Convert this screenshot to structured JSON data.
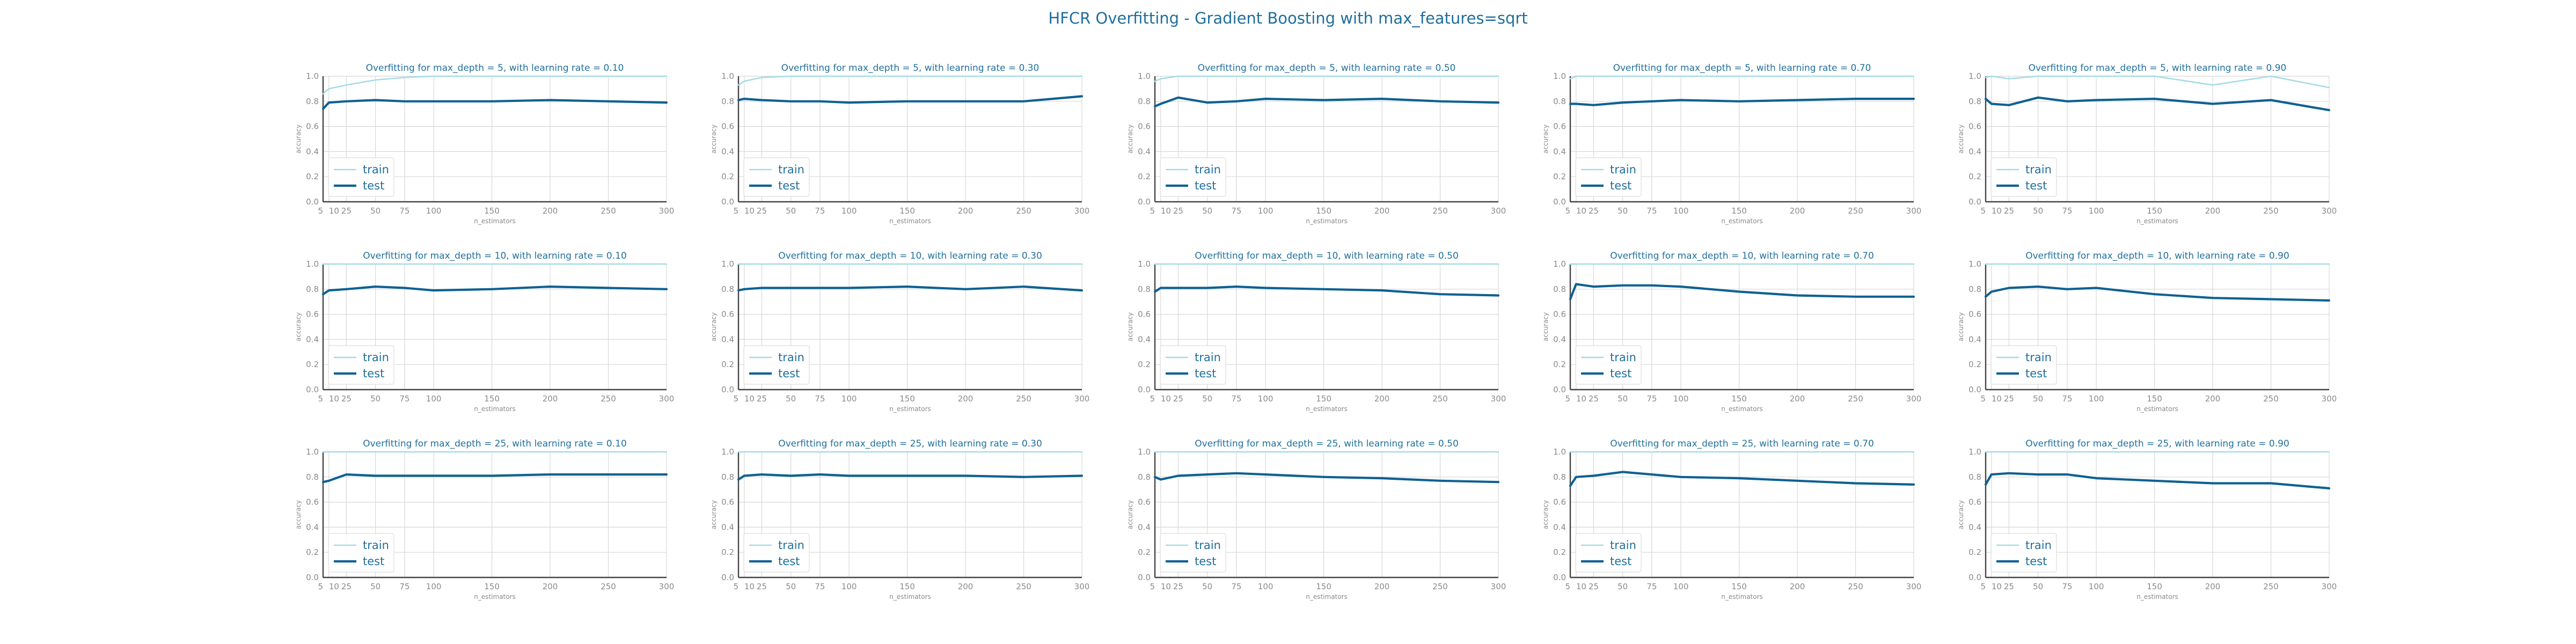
{
  "suptitle": "HFCR Overfitting - Gradient Boosting with max_features=sqrt",
  "colors": {
    "train": "#a6dce5",
    "test": "#0e6193",
    "grid": "#d8d8d8",
    "axis": "#444444",
    "text": "#1f6f9c"
  },
  "chart_data": [
    {
      "type": "line",
      "title": "Overfitting for max_depth = 5, with learning rate = 0.10",
      "xlabel": "n_estimators",
      "ylabel": "accuracy",
      "ylim": [
        0,
        1
      ],
      "xlim": [
        5,
        300
      ],
      "xticks": [
        5,
        10,
        25,
        50,
        75,
        100,
        150,
        200,
        250,
        300
      ],
      "yticks": [
        0.0,
        0.2,
        0.4,
        0.6,
        0.8,
        1.0
      ],
      "x": [
        5,
        10,
        25,
        50,
        75,
        100,
        150,
        200,
        250,
        300
      ],
      "legend": "lower-left",
      "grid": true,
      "series": [
        {
          "name": "train",
          "values": [
            0.86,
            0.9,
            0.93,
            0.97,
            0.99,
            1.0,
            1.0,
            1.0,
            1.0,
            1.0
          ]
        },
        {
          "name": "test",
          "values": [
            0.74,
            0.79,
            0.8,
            0.81,
            0.8,
            0.8,
            0.8,
            0.81,
            0.8,
            0.79
          ]
        }
      ]
    },
    {
      "type": "line",
      "title": "Overfitting for max_depth = 5, with learning rate = 0.30",
      "xlabel": "n_estimators",
      "ylabel": "accuracy",
      "ylim": [
        0,
        1
      ],
      "xlim": [
        5,
        300
      ],
      "xticks": [
        5,
        10,
        25,
        50,
        75,
        100,
        150,
        200,
        250,
        300
      ],
      "yticks": [
        0.0,
        0.2,
        0.4,
        0.6,
        0.8,
        1.0
      ],
      "x": [
        5,
        10,
        25,
        50,
        75,
        100,
        150,
        200,
        250,
        300
      ],
      "legend": "lower-left",
      "grid": true,
      "series": [
        {
          "name": "train",
          "values": [
            0.93,
            0.96,
            0.99,
            1.0,
            1.0,
            1.0,
            1.0,
            1.0,
            1.0,
            1.0
          ]
        },
        {
          "name": "test",
          "values": [
            0.81,
            0.82,
            0.81,
            0.8,
            0.8,
            0.79,
            0.8,
            0.8,
            0.8,
            0.84
          ]
        }
      ]
    },
    {
      "type": "line",
      "title": "Overfitting for max_depth = 5, with learning rate = 0.50",
      "xlabel": "n_estimators",
      "ylabel": "accuracy",
      "ylim": [
        0,
        1
      ],
      "xlim": [
        5,
        300
      ],
      "xticks": [
        5,
        10,
        25,
        50,
        75,
        100,
        150,
        200,
        250,
        300
      ],
      "yticks": [
        0.0,
        0.2,
        0.4,
        0.6,
        0.8,
        1.0
      ],
      "x": [
        5,
        10,
        25,
        50,
        75,
        100,
        150,
        200,
        250,
        300
      ],
      "legend": "lower-left",
      "grid": true,
      "series": [
        {
          "name": "train",
          "values": [
            0.96,
            0.98,
            1.0,
            1.0,
            1.0,
            1.0,
            1.0,
            1.0,
            1.0,
            1.0
          ]
        },
        {
          "name": "test",
          "values": [
            0.76,
            0.78,
            0.83,
            0.79,
            0.8,
            0.82,
            0.81,
            0.82,
            0.8,
            0.79
          ]
        }
      ]
    },
    {
      "type": "line",
      "title": "Overfitting for max_depth = 5, with learning rate = 0.70",
      "xlabel": "n_estimators",
      "ylabel": "accuracy",
      "ylim": [
        0,
        1
      ],
      "xlim": [
        5,
        300
      ],
      "xticks": [
        5,
        10,
        25,
        50,
        75,
        100,
        150,
        200,
        250,
        300
      ],
      "yticks": [
        0.0,
        0.2,
        0.4,
        0.6,
        0.8,
        1.0
      ],
      "x": [
        5,
        10,
        25,
        50,
        75,
        100,
        150,
        200,
        250,
        300
      ],
      "legend": "lower-left",
      "grid": true,
      "series": [
        {
          "name": "train",
          "values": [
            0.98,
            1.0,
            1.0,
            1.0,
            1.0,
            1.0,
            1.0,
            1.0,
            1.0,
            1.0
          ]
        },
        {
          "name": "test",
          "values": [
            0.78,
            0.78,
            0.77,
            0.79,
            0.8,
            0.81,
            0.8,
            0.81,
            0.82,
            0.82
          ]
        }
      ]
    },
    {
      "type": "line",
      "title": "Overfitting for max_depth = 5, with learning rate = 0.90",
      "xlabel": "n_estimators",
      "ylabel": "accuracy",
      "ylim": [
        0,
        1
      ],
      "xlim": [
        5,
        300
      ],
      "xticks": [
        5,
        10,
        25,
        50,
        75,
        100,
        150,
        200,
        250,
        300
      ],
      "yticks": [
        0.0,
        0.2,
        0.4,
        0.6,
        0.8,
        1.0
      ],
      "x": [
        5,
        10,
        25,
        50,
        75,
        100,
        150,
        200,
        250,
        300
      ],
      "legend": "lower-left",
      "grid": true,
      "series": [
        {
          "name": "train",
          "values": [
            0.99,
            1.0,
            0.98,
            1.0,
            1.0,
            1.0,
            1.0,
            0.93,
            1.0,
            0.91
          ]
        },
        {
          "name": "test",
          "values": [
            0.82,
            0.78,
            0.77,
            0.83,
            0.8,
            0.81,
            0.82,
            0.78,
            0.81,
            0.73
          ]
        }
      ]
    },
    {
      "type": "line",
      "title": "Overfitting for max_depth = 10, with learning rate = 0.10",
      "xlabel": "n_estimators",
      "ylabel": "accuracy",
      "ylim": [
        0,
        1
      ],
      "xlim": [
        5,
        300
      ],
      "xticks": [
        5,
        10,
        25,
        50,
        75,
        100,
        150,
        200,
        250,
        300
      ],
      "yticks": [
        0.0,
        0.2,
        0.4,
        0.6,
        0.8,
        1.0
      ],
      "x": [
        5,
        10,
        25,
        50,
        75,
        100,
        150,
        200,
        250,
        300
      ],
      "legend": "lower-left",
      "grid": true,
      "series": [
        {
          "name": "train",
          "values": [
            1.0,
            1.0,
            1.0,
            1.0,
            1.0,
            1.0,
            1.0,
            1.0,
            1.0,
            1.0
          ]
        },
        {
          "name": "test",
          "values": [
            0.76,
            0.79,
            0.8,
            0.82,
            0.81,
            0.79,
            0.8,
            0.82,
            0.81,
            0.8
          ]
        }
      ]
    },
    {
      "type": "line",
      "title": "Overfitting for max_depth = 10, with learning rate = 0.30",
      "xlabel": "n_estimators",
      "ylabel": "accuracy",
      "ylim": [
        0,
        1
      ],
      "xlim": [
        5,
        300
      ],
      "xticks": [
        5,
        10,
        25,
        50,
        75,
        100,
        150,
        200,
        250,
        300
      ],
      "yticks": [
        0.0,
        0.2,
        0.4,
        0.6,
        0.8,
        1.0
      ],
      "x": [
        5,
        10,
        25,
        50,
        75,
        100,
        150,
        200,
        250,
        300
      ],
      "legend": "lower-left",
      "grid": true,
      "series": [
        {
          "name": "train",
          "values": [
            1.0,
            1.0,
            1.0,
            1.0,
            1.0,
            1.0,
            1.0,
            1.0,
            1.0,
            1.0
          ]
        },
        {
          "name": "test",
          "values": [
            0.79,
            0.8,
            0.81,
            0.81,
            0.81,
            0.81,
            0.82,
            0.8,
            0.82,
            0.79
          ]
        }
      ]
    },
    {
      "type": "line",
      "title": "Overfitting for max_depth = 10, with learning rate = 0.50",
      "xlabel": "n_estimators",
      "ylabel": "accuracy",
      "ylim": [
        0,
        1
      ],
      "xlim": [
        5,
        300
      ],
      "xticks": [
        5,
        10,
        25,
        50,
        75,
        100,
        150,
        200,
        250,
        300
      ],
      "yticks": [
        0.0,
        0.2,
        0.4,
        0.6,
        0.8,
        1.0
      ],
      "x": [
        5,
        10,
        25,
        50,
        75,
        100,
        150,
        200,
        250,
        300
      ],
      "legend": "lower-left",
      "grid": true,
      "series": [
        {
          "name": "train",
          "values": [
            1.0,
            1.0,
            1.0,
            1.0,
            1.0,
            1.0,
            1.0,
            1.0,
            1.0,
            1.0
          ]
        },
        {
          "name": "test",
          "values": [
            0.78,
            0.81,
            0.81,
            0.81,
            0.82,
            0.81,
            0.8,
            0.79,
            0.76,
            0.75
          ]
        }
      ]
    },
    {
      "type": "line",
      "title": "Overfitting for max_depth = 10, with learning rate = 0.70",
      "xlabel": "n_estimators",
      "ylabel": "accuracy",
      "ylim": [
        0,
        1
      ],
      "xlim": [
        5,
        300
      ],
      "xticks": [
        5,
        10,
        25,
        50,
        75,
        100,
        150,
        200,
        250,
        300
      ],
      "yticks": [
        0.0,
        0.2,
        0.4,
        0.6,
        0.8,
        1.0
      ],
      "x": [
        5,
        10,
        25,
        50,
        75,
        100,
        150,
        200,
        250,
        300
      ],
      "legend": "lower-left",
      "grid": true,
      "series": [
        {
          "name": "train",
          "values": [
            1.0,
            1.0,
            1.0,
            1.0,
            1.0,
            1.0,
            1.0,
            1.0,
            1.0,
            1.0
          ]
        },
        {
          "name": "test",
          "values": [
            0.72,
            0.84,
            0.82,
            0.83,
            0.83,
            0.82,
            0.78,
            0.75,
            0.74,
            0.74
          ]
        }
      ]
    },
    {
      "type": "line",
      "title": "Overfitting for max_depth = 10, with learning rate = 0.90",
      "xlabel": "n_estimators",
      "ylabel": "accuracy",
      "ylim": [
        0,
        1
      ],
      "xlim": [
        5,
        300
      ],
      "xticks": [
        5,
        10,
        25,
        50,
        75,
        100,
        150,
        200,
        250,
        300
      ],
      "yticks": [
        0.0,
        0.2,
        0.4,
        0.6,
        0.8,
        1.0
      ],
      "x": [
        5,
        10,
        25,
        50,
        75,
        100,
        150,
        200,
        250,
        300
      ],
      "legend": "lower-left",
      "grid": true,
      "series": [
        {
          "name": "train",
          "values": [
            1.0,
            1.0,
            1.0,
            1.0,
            1.0,
            1.0,
            1.0,
            1.0,
            1.0,
            1.0
          ]
        },
        {
          "name": "test",
          "values": [
            0.74,
            0.78,
            0.81,
            0.82,
            0.8,
            0.81,
            0.76,
            0.73,
            0.72,
            0.71
          ]
        }
      ]
    },
    {
      "type": "line",
      "title": "Overfitting for max_depth = 25, with learning rate = 0.10",
      "xlabel": "n_estimators",
      "ylabel": "accuracy",
      "ylim": [
        0,
        1
      ],
      "xlim": [
        5,
        300
      ],
      "xticks": [
        5,
        10,
        25,
        50,
        75,
        100,
        150,
        200,
        250,
        300
      ],
      "yticks": [
        0.0,
        0.2,
        0.4,
        0.6,
        0.8,
        1.0
      ],
      "x": [
        5,
        10,
        25,
        50,
        75,
        100,
        150,
        200,
        250,
        300
      ],
      "legend": "lower-left",
      "grid": true,
      "series": [
        {
          "name": "train",
          "values": [
            1.0,
            1.0,
            1.0,
            1.0,
            1.0,
            1.0,
            1.0,
            1.0,
            1.0,
            1.0
          ]
        },
        {
          "name": "test",
          "values": [
            0.76,
            0.77,
            0.82,
            0.81,
            0.81,
            0.81,
            0.81,
            0.82,
            0.82,
            0.82
          ]
        }
      ]
    },
    {
      "type": "line",
      "title": "Overfitting for max_depth = 25, with learning rate = 0.30",
      "xlabel": "n_estimators",
      "ylabel": "accuracy",
      "ylim": [
        0,
        1
      ],
      "xlim": [
        5,
        300
      ],
      "xticks": [
        5,
        10,
        25,
        50,
        75,
        100,
        150,
        200,
        250,
        300
      ],
      "yticks": [
        0.0,
        0.2,
        0.4,
        0.6,
        0.8,
        1.0
      ],
      "x": [
        5,
        10,
        25,
        50,
        75,
        100,
        150,
        200,
        250,
        300
      ],
      "legend": "lower-left",
      "grid": true,
      "series": [
        {
          "name": "train",
          "values": [
            1.0,
            1.0,
            1.0,
            1.0,
            1.0,
            1.0,
            1.0,
            1.0,
            1.0,
            1.0
          ]
        },
        {
          "name": "test",
          "values": [
            0.78,
            0.81,
            0.82,
            0.81,
            0.82,
            0.81,
            0.81,
            0.81,
            0.8,
            0.81
          ]
        }
      ]
    },
    {
      "type": "line",
      "title": "Overfitting for max_depth = 25, with learning rate = 0.50",
      "xlabel": "n_estimators",
      "ylabel": "accuracy",
      "ylim": [
        0,
        1
      ],
      "xlim": [
        5,
        300
      ],
      "xticks": [
        5,
        10,
        25,
        50,
        75,
        100,
        150,
        200,
        250,
        300
      ],
      "yticks": [
        0.0,
        0.2,
        0.4,
        0.6,
        0.8,
        1.0
      ],
      "x": [
        5,
        10,
        25,
        50,
        75,
        100,
        150,
        200,
        250,
        300
      ],
      "legend": "lower-left",
      "grid": true,
      "series": [
        {
          "name": "train",
          "values": [
            1.0,
            1.0,
            1.0,
            1.0,
            1.0,
            1.0,
            1.0,
            1.0,
            1.0,
            1.0
          ]
        },
        {
          "name": "test",
          "values": [
            0.8,
            0.78,
            0.81,
            0.82,
            0.83,
            0.82,
            0.8,
            0.79,
            0.77,
            0.76
          ]
        }
      ]
    },
    {
      "type": "line",
      "title": "Overfitting for max_depth = 25, with learning rate = 0.70",
      "xlabel": "n_estimators",
      "ylabel": "accuracy",
      "ylim": [
        0,
        1
      ],
      "xlim": [
        5,
        300
      ],
      "xticks": [
        5,
        10,
        25,
        50,
        75,
        100,
        150,
        200,
        250,
        300
      ],
      "yticks": [
        0.0,
        0.2,
        0.4,
        0.6,
        0.8,
        1.0
      ],
      "x": [
        5,
        10,
        25,
        50,
        75,
        100,
        150,
        200,
        250,
        300
      ],
      "legend": "lower-left",
      "grid": true,
      "series": [
        {
          "name": "train",
          "values": [
            1.0,
            1.0,
            1.0,
            1.0,
            1.0,
            1.0,
            1.0,
            1.0,
            1.0,
            1.0
          ]
        },
        {
          "name": "test",
          "values": [
            0.73,
            0.8,
            0.81,
            0.84,
            0.82,
            0.8,
            0.79,
            0.77,
            0.75,
            0.74
          ]
        }
      ]
    },
    {
      "type": "line",
      "title": "Overfitting for max_depth = 25, with learning rate = 0.90",
      "xlabel": "n_estimators",
      "ylabel": "accuracy",
      "ylim": [
        0,
        1
      ],
      "xlim": [
        5,
        300
      ],
      "xticks": [
        5,
        10,
        25,
        50,
        75,
        100,
        150,
        200,
        250,
        300
      ],
      "yticks": [
        0.0,
        0.2,
        0.4,
        0.6,
        0.8,
        1.0
      ],
      "x": [
        5,
        10,
        25,
        50,
        75,
        100,
        150,
        200,
        250,
        300
      ],
      "legend": "lower-left",
      "grid": true,
      "series": [
        {
          "name": "train",
          "values": [
            1.0,
            1.0,
            1.0,
            1.0,
            1.0,
            1.0,
            1.0,
            1.0,
            1.0,
            1.0
          ]
        },
        {
          "name": "test",
          "values": [
            0.74,
            0.82,
            0.83,
            0.82,
            0.82,
            0.79,
            0.77,
            0.75,
            0.75,
            0.71
          ]
        }
      ]
    }
  ]
}
